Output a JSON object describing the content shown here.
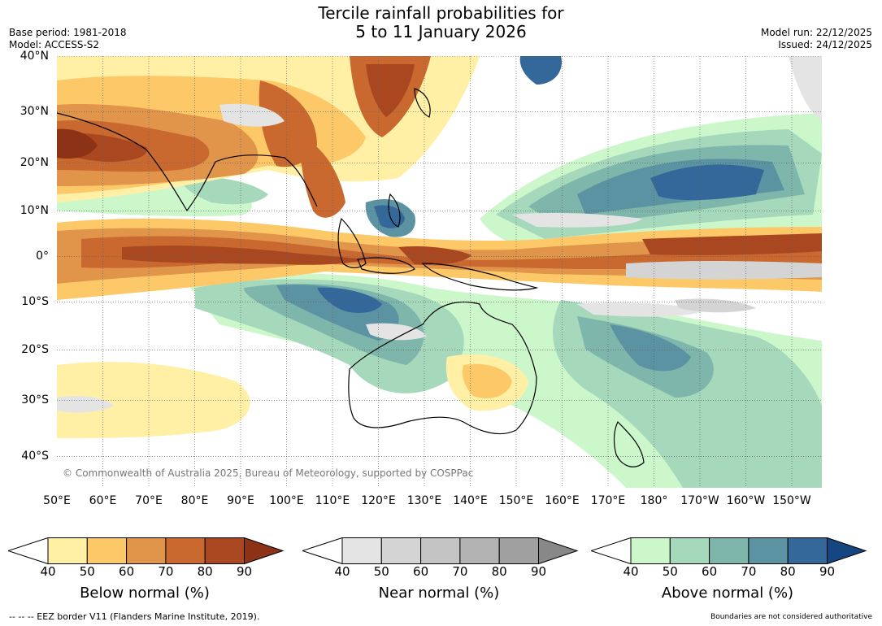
{
  "header": {
    "title_line1": "Tercile rainfall probabilities for",
    "title_line2": "5 to 11 January 2026",
    "base_period": "Base period: 1981-2018",
    "model": "Model: ACCESS-S2",
    "model_run": "Model run: 22/12/2025",
    "issued": "Issued: 24/12/2025"
  },
  "map": {
    "lat_labels": [
      "40°N",
      "30°N",
      "20°N",
      "10°N",
      "0°",
      "10°S",
      "20°S",
      "30°S",
      "40°S"
    ],
    "lon_labels": [
      "50°E",
      "60°E",
      "70°E",
      "80°E",
      "90°E",
      "100°E",
      "110°E",
      "120°E",
      "130°E",
      "140°E",
      "150°E",
      "160°E",
      "170°E",
      "180°",
      "170°W",
      "160°W",
      "150°W"
    ],
    "copyright": "© Commonwealth of Australia 2025, Bureau of Meteorology, supported by COSPPac",
    "colors": {
      "below": [
        "#fff0a6",
        "#fdc968",
        "#e0954a",
        "#c9682f",
        "#a84720",
        "#8c3216"
      ],
      "near": [
        "#e4e4e4",
        "#d4d4d4",
        "#c4c4c4",
        "#b3b3b3",
        "#a0a0a0",
        "#888888"
      ],
      "above": [
        "#cbf7cb",
        "#a6d8bb",
        "#7fb6ab",
        "#5b93a3",
        "#34679a",
        "#15467f"
      ]
    }
  },
  "colorbars": [
    {
      "id": "below",
      "title": "Below normal (%)",
      "ticks": [
        "40",
        "50",
        "60",
        "70",
        "80",
        "90"
      ]
    },
    {
      "id": "near",
      "title": "Near normal (%)",
      "ticks": [
        "40",
        "50",
        "60",
        "70",
        "80",
        "90"
      ]
    },
    {
      "id": "above",
      "title": "Above normal (%)",
      "ticks": [
        "40",
        "50",
        "60",
        "70",
        "80",
        "90"
      ]
    }
  ],
  "footer": {
    "eez_note": "--  --  -- EEZ border V11 (Flanders Marine Institute, 2019).",
    "boundaries_note": "Boundaries are not considered authoritative"
  }
}
